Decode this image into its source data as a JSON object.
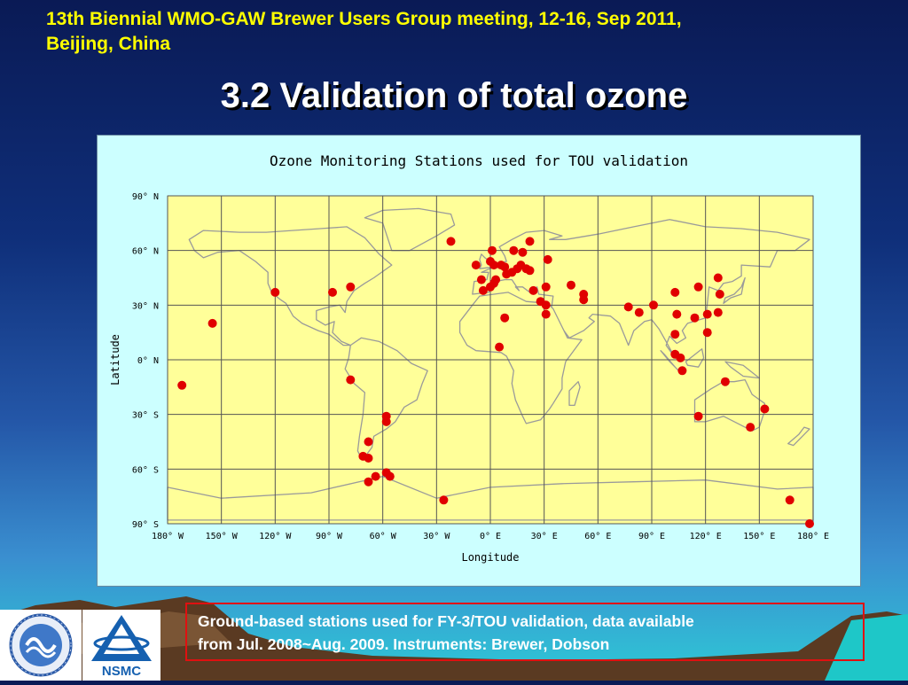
{
  "header": {
    "meeting_line1": "13th Biennial WMO-GAW Brewer Users Group meeting, 12-16, Sep 2011,",
    "meeting_line2": "Beijing, China",
    "title": "3.2 Validation of total ozone"
  },
  "caption": {
    "line1": "Ground-based stations used for FY-3/TOU validation, data available",
    "line2": "from Jul. 2008~Aug. 2009. Instruments: Brewer, Dobson"
  },
  "logos": {
    "left_name": "china-meteorological-administration-logo",
    "right_label": "NSMC"
  },
  "colors": {
    "background_top": "#0a1a55",
    "header_text": "#ffff00",
    "title_text": "#ffffff",
    "map_fill": "#ffff99",
    "figure_bg": "#ccffff",
    "station_marker": "#e00000",
    "caption_border": "#e01010",
    "nsmc_blue": "#1560b0"
  },
  "chart_data": {
    "type": "scatter",
    "title": "Ozone Monitoring Stations used for TOU validation",
    "xlabel": "Longitude",
    "ylabel": "Latitude",
    "xlim": [
      -180,
      180
    ],
    "ylim": [
      -90,
      90
    ],
    "grid": true,
    "background": "world-map",
    "x_ticks": [
      {
        "value": -180,
        "label": "180° W"
      },
      {
        "value": -150,
        "label": "150° W"
      },
      {
        "value": -120,
        "label": "120° W"
      },
      {
        "value": -90,
        "label": "90° W"
      },
      {
        "value": -60,
        "label": "60° W"
      },
      {
        "value": -30,
        "label": "30° W"
      },
      {
        "value": 0,
        "label": "0° E"
      },
      {
        "value": 30,
        "label": "30° E"
      },
      {
        "value": 60,
        "label": "60° E"
      },
      {
        "value": 90,
        "label": "90° E"
      },
      {
        "value": 120,
        "label": "120° E"
      },
      {
        "value": 150,
        "label": "150° E"
      },
      {
        "value": 180,
        "label": "180° E"
      }
    ],
    "y_ticks": [
      {
        "value": 90,
        "label": "90° N"
      },
      {
        "value": 60,
        "label": "60° N"
      },
      {
        "value": 30,
        "label": "30° N"
      },
      {
        "value": 0,
        "label": "0° N"
      },
      {
        "value": -30,
        "label": "30° S"
      },
      {
        "value": -60,
        "label": "60° S"
      },
      {
        "value": -90,
        "label": "90° S"
      }
    ],
    "stations": [
      {
        "lon": -172,
        "lat": -14
      },
      {
        "lon": -155,
        "lat": 20
      },
      {
        "lon": -120,
        "lat": 37
      },
      {
        "lon": -88,
        "lat": 37
      },
      {
        "lon": -78,
        "lat": 40
      },
      {
        "lon": -78,
        "lat": -11
      },
      {
        "lon": -58,
        "lat": -31
      },
      {
        "lon": -58,
        "lat": -34
      },
      {
        "lon": -68,
        "lat": -45
      },
      {
        "lon": -71,
        "lat": -53
      },
      {
        "lon": -68,
        "lat": -54
      },
      {
        "lon": -68,
        "lat": -67
      },
      {
        "lon": -64,
        "lat": -64
      },
      {
        "lon": -58,
        "lat": -62
      },
      {
        "lon": -56,
        "lat": -64
      },
      {
        "lon": -26,
        "lat": -77
      },
      {
        "lon": -22,
        "lat": 65
      },
      {
        "lon": -8,
        "lat": 52
      },
      {
        "lon": -5,
        "lat": 44
      },
      {
        "lon": -4,
        "lat": 38
      },
      {
        "lon": 0,
        "lat": 40
      },
      {
        "lon": 0,
        "lat": 54
      },
      {
        "lon": 1,
        "lat": 60
      },
      {
        "lon": 2,
        "lat": 52
      },
      {
        "lon": 2,
        "lat": 42
      },
      {
        "lon": 3,
        "lat": 44
      },
      {
        "lon": 6,
        "lat": 52
      },
      {
        "lon": 8,
        "lat": 51
      },
      {
        "lon": 9,
        "lat": 47
      },
      {
        "lon": 12,
        "lat": 48
      },
      {
        "lon": 13,
        "lat": 60
      },
      {
        "lon": 15,
        "lat": 50
      },
      {
        "lon": 17,
        "lat": 52
      },
      {
        "lon": 18,
        "lat": 59
      },
      {
        "lon": 20,
        "lat": 50
      },
      {
        "lon": 22,
        "lat": 49
      },
      {
        "lon": 22,
        "lat": 65
      },
      {
        "lon": 24,
        "lat": 38
      },
      {
        "lon": 28,
        "lat": 32
      },
      {
        "lon": 31,
        "lat": 30
      },
      {
        "lon": 31,
        "lat": 40
      },
      {
        "lon": 32,
        "lat": 55
      },
      {
        "lon": 31,
        "lat": 25
      },
      {
        "lon": 8,
        "lat": 23
      },
      {
        "lon": 5,
        "lat": 7
      },
      {
        "lon": 45,
        "lat": 41
      },
      {
        "lon": 52,
        "lat": 36
      },
      {
        "lon": 52,
        "lat": 33
      },
      {
        "lon": 77,
        "lat": 29
      },
      {
        "lon": 83,
        "lat": 26
      },
      {
        "lon": 91,
        "lat": 30
      },
      {
        "lon": 103,
        "lat": 37
      },
      {
        "lon": 104,
        "lat": 25
      },
      {
        "lon": 103,
        "lat": 14
      },
      {
        "lon": 103,
        "lat": 3
      },
      {
        "lon": 106,
        "lat": 1
      },
      {
        "lon": 107,
        "lat": -6
      },
      {
        "lon": 114,
        "lat": 23
      },
      {
        "lon": 116,
        "lat": 40
      },
      {
        "lon": 121,
        "lat": 25
      },
      {
        "lon": 121,
        "lat": 15
      },
      {
        "lon": 127,
        "lat": 26
      },
      {
        "lon": 127,
        "lat": 45
      },
      {
        "lon": 128,
        "lat": 36
      },
      {
        "lon": 131,
        "lat": -12
      },
      {
        "lon": 116,
        "lat": -31
      },
      {
        "lon": 145,
        "lat": -37
      },
      {
        "lon": 153,
        "lat": -27
      },
      {
        "lon": 167,
        "lat": -77
      },
      {
        "lon": 178,
        "lat": -90
      }
    ]
  }
}
